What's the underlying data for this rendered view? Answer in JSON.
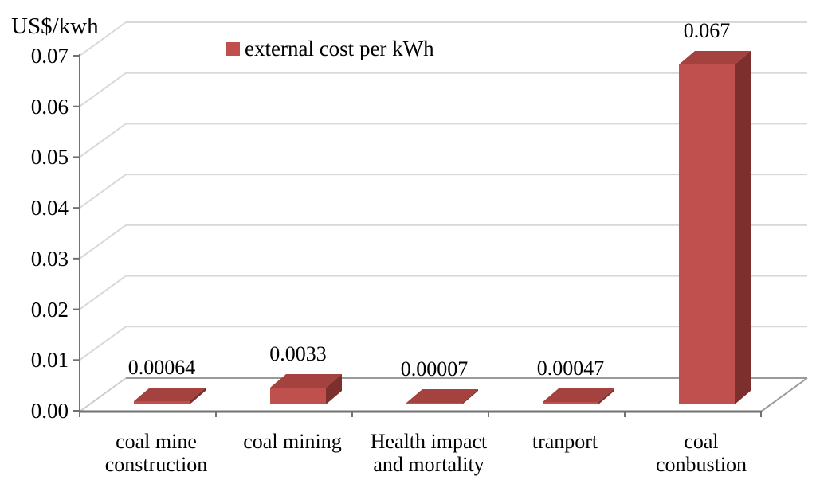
{
  "chart_data": {
    "type": "bar",
    "style": "3d-clustered-column",
    "y_axis_title": "US$/kwh",
    "legend": {
      "label": "external cost per kWh",
      "swatch_color": "#c0504d",
      "position": "top-center"
    },
    "categories": [
      "coal mine construction",
      "coal mining",
      "Health impact and mortality",
      "tranport",
      "coal conbustion"
    ],
    "category_lines": [
      [
        "coal mine",
        "construction"
      ],
      [
        "coal mining"
      ],
      [
        "Health impact",
        "and mortality"
      ],
      [
        "tranport"
      ],
      [
        "coal",
        "conbustion"
      ]
    ],
    "series": [
      {
        "name": "external cost per kWh",
        "values": [
          0.00064,
          0.0033,
          7e-05,
          0.00047,
          0.067
        ],
        "data_labels": [
          "0.00064",
          "0.0033",
          "0.00007",
          "0.00047",
          "0.067"
        ]
      }
    ],
    "xlabel": "",
    "ylabel": "US$/kwh",
    "ylim": [
      0,
      0.07
    ],
    "y_tick_step": 0.01,
    "y_ticks": [
      "0.00",
      "0.01",
      "0.02",
      "0.03",
      "0.04",
      "0.05",
      "0.06",
      "0.07"
    ],
    "grid": true,
    "colors": {
      "bar_front": "#c0504d",
      "bar_top": "#a4423f",
      "bar_side": "#7d2f2e",
      "gridline": "#d9d9d9",
      "axis": "#717171",
      "floor_edge": "#9a9a9a",
      "floor_edge_light": "#cdcdcd",
      "text": "#000000",
      "background": "#ffffff"
    }
  }
}
